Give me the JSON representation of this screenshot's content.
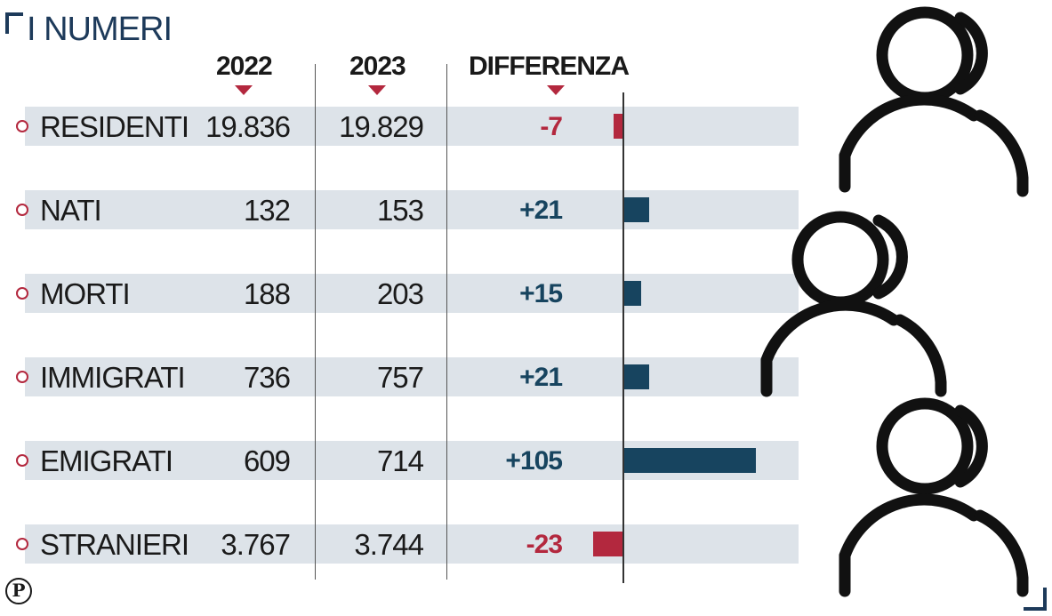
{
  "title": "I NUMERI",
  "columns": {
    "year1": "2022",
    "year2": "2023",
    "diff": "DIFFERENZA"
  },
  "colors": {
    "accent": "#b3283e",
    "navy": "#17445f",
    "band": "#dde3e9",
    "title": "#1d3a5a"
  },
  "rows": [
    {
      "label": "RESIDENTI",
      "v2022": "19.836",
      "v2023": "19.829",
      "diff": "-7"
    },
    {
      "label": "NATI",
      "v2022": "132",
      "v2023": "153",
      "diff": "+21"
    },
    {
      "label": "MORTI",
      "v2022": "188",
      "v2023": "203",
      "diff": "+15"
    },
    {
      "label": "IMMIGRATI",
      "v2022": "736",
      "v2023": "757",
      "diff": "+21"
    },
    {
      "label": "EMIGRATI",
      "v2022": "609",
      "v2023": "714",
      "diff": "+105"
    },
    {
      "label": "STRANIERI",
      "v2022": "3.767",
      "v2023": "3.744",
      "diff": "-23"
    }
  ],
  "chart_data": {
    "type": "bar",
    "categories": [
      "RESIDENTI",
      "NATI",
      "MORTI",
      "IMMIGRATI",
      "EMIGRATI",
      "STRANIERI"
    ],
    "values": [
      -7,
      21,
      15,
      21,
      105,
      -23
    ],
    "title": "I NUMERI",
    "xlabel": "DIFFERENZA",
    "ylabel": ""
  },
  "logo_text": "P"
}
